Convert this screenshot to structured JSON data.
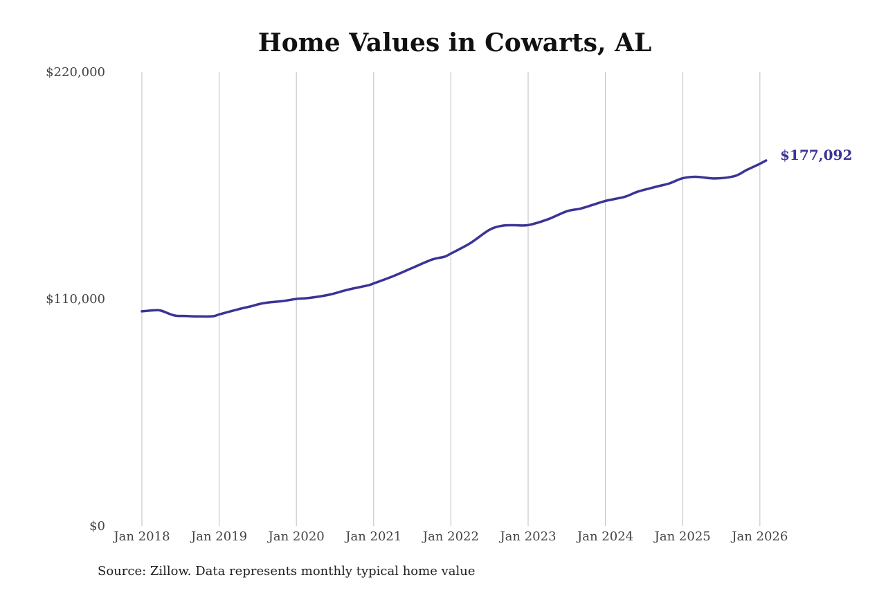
{
  "chart_data": {
    "type": "line",
    "title": "Home Values in Cowarts, AL",
    "xlabel": "",
    "ylabel": "",
    "ylim": [
      0,
      220000
    ],
    "grid": "vertical",
    "x_ticks": [
      "Jan 2018",
      "Jan 2019",
      "Jan 2020",
      "Jan 2021",
      "Jan 2022",
      "Jan 2023",
      "Jan 2024",
      "Jan 2025",
      "Jan 2026"
    ],
    "y_ticks": [
      {
        "value": 0,
        "label": "$0"
      },
      {
        "value": 110000,
        "label": "$110,000"
      },
      {
        "value": 220000,
        "label": "$220,000"
      }
    ],
    "series": [
      {
        "color": "#3b3496",
        "end_label": "$177,092",
        "x": [
          2018.0,
          2018.17,
          2018.25,
          2018.42,
          2018.58,
          2018.75,
          2018.92,
          2019.0,
          2019.25,
          2019.42,
          2019.58,
          2019.83,
          2020.0,
          2020.17,
          2020.42,
          2020.67,
          2020.92,
          2021.0,
          2021.25,
          2021.5,
          2021.75,
          2021.92,
          2022.0,
          2022.25,
          2022.5,
          2022.67,
          2022.83,
          2023.0,
          2023.25,
          2023.5,
          2023.67,
          2023.83,
          2024.0,
          2024.25,
          2024.42,
          2024.67,
          2024.83,
          2025.0,
          2025.17,
          2025.42,
          2025.67,
          2025.83,
          2026.0,
          2026.08
        ],
        "values": [
          104000,
          104500,
          104300,
          102000,
          101700,
          101500,
          101600,
          102500,
          105000,
          106500,
          108000,
          109000,
          110000,
          110500,
          112000,
          114500,
          116500,
          117500,
          121000,
          125000,
          129000,
          130500,
          132000,
          137000,
          143500,
          145500,
          145700,
          145800,
          148500,
          152500,
          153700,
          155500,
          157500,
          159500,
          162000,
          164500,
          166000,
          168500,
          169200,
          168400,
          169500,
          172500,
          175500,
          177092
        ]
      }
    ],
    "source_note": "Source: Zillow. Data represents monthly typical home value"
  }
}
